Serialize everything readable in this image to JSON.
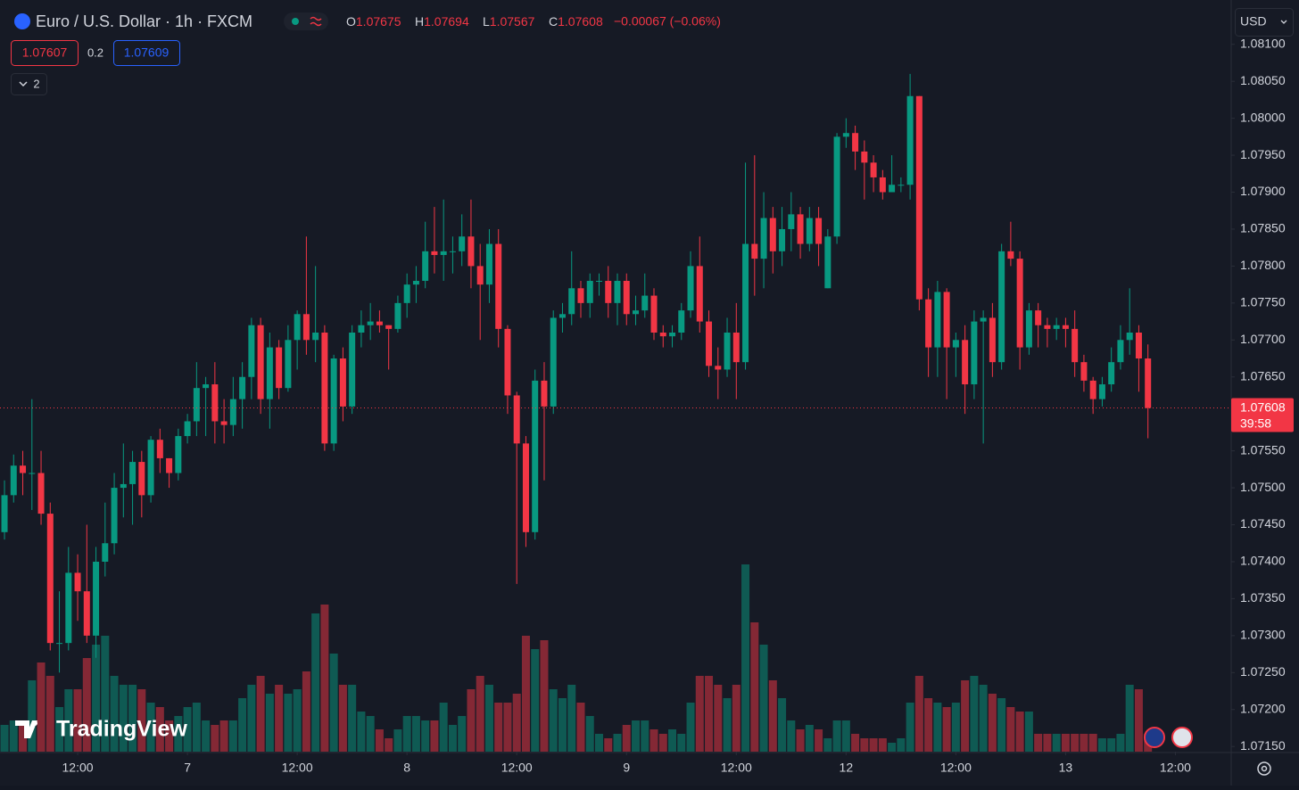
{
  "chart_data": {
    "type": "candlestick",
    "title": "Euro / U.S. Dollar · 1h · FXCM",
    "ohlc_header": [
      {
        "label": "O",
        "value": "1.07675"
      },
      {
        "label": "H",
        "value": "1.07694"
      },
      {
        "label": "L",
        "value": "1.07567"
      },
      {
        "label": "C",
        "value": "1.07608"
      }
    ],
    "change": "−0.00067 (−0.06%)",
    "up_color": "#089981",
    "down_color": "#f23645",
    "open": [
      1.0744,
      1.0749,
      1.0753,
      1.0752,
      1.0752,
      1.07465,
      1.0729,
      1.0729,
      1.07385,
      1.0736,
      1.073,
      1.074,
      1.07425,
      1.075,
      1.07505,
      1.07535,
      1.0749,
      1.07565,
      1.0754,
      1.0752,
      1.0757,
      1.0759,
      1.07635,
      1.0764,
      1.0759,
      1.07585,
      1.0762,
      1.0765,
      1.0772,
      1.0762,
      1.0769,
      1.07635,
      1.077,
      1.07735,
      1.077,
      1.0771,
      1.0756,
      1.07675,
      1.0761,
      1.0771,
      1.0772,
      1.07725,
      1.0772,
      1.07715,
      1.0775,
      1.07775,
      1.0778,
      1.0782,
      1.07815,
      1.0782,
      1.0782,
      1.0784,
      1.078,
      1.07775,
      1.0783,
      1.07715,
      1.07625,
      1.0756,
      1.0744,
      1.07645,
      1.0761,
      1.0773,
      1.07735,
      1.0777,
      1.0775,
      1.0778,
      1.0778,
      1.0775,
      1.0778,
      1.07735,
      1.0774,
      1.0776,
      1.0771,
      1.07705,
      1.0771,
      1.0774,
      1.078,
      1.07725,
      1.07665,
      1.0766,
      1.0771,
      1.0767,
      1.0783,
      1.0781,
      1.07865,
      1.0782,
      1.0785,
      1.0787,
      1.0783,
      1.07865,
      1.0777,
      1.0784,
      1.07975,
      1.0798,
      1.07955,
      1.0794,
      1.0792,
      1.079,
      1.0791,
      1.0791,
      1.0803,
      1.07755,
      1.0769,
      1.07765,
      1.0769,
      1.077,
      1.0764,
      1.07725,
      1.0773,
      1.0767,
      1.0782,
      1.0781,
      1.0769,
      1.0774,
      1.0772,
      1.07715,
      1.0772,
      1.07715,
      1.0767,
      1.07645,
      1.0762,
      1.0764,
      1.0767,
      1.077,
      1.0771,
      1.07675
    ],
    "high": [
      1.0751,
      1.07545,
      1.0755,
      1.0762,
      1.0755,
      1.0748,
      1.0736,
      1.0742,
      1.0741,
      1.0745,
      1.0742,
      1.0748,
      1.0752,
      1.0756,
      1.0755,
      1.0755,
      1.0757,
      1.0758,
      1.0754,
      1.0758,
      1.076,
      1.0767,
      1.0765,
      1.0767,
      1.0762,
      1.0765,
      1.0767,
      1.0773,
      1.0773,
      1.0771,
      1.077,
      1.0772,
      1.0774,
      1.0784,
      1.078,
      1.0772,
      1.0768,
      1.0769,
      1.0772,
      1.0774,
      1.0775,
      1.0774,
      1.0772,
      1.0776,
      1.0779,
      1.078,
      1.0786,
      1.0788,
      1.0789,
      1.0784,
      1.0787,
      1.0789,
      1.0783,
      1.0785,
      1.0785,
      1.0772,
      1.0763,
      1.0757,
      1.0766,
      1.0767,
      1.0774,
      1.0775,
      1.0782,
      1.0778,
      1.0779,
      1.0779,
      1.078,
      1.0779,
      1.0779,
      1.0776,
      1.0779,
      1.0777,
      1.0772,
      1.0772,
      1.0775,
      1.0782,
      1.0784,
      1.0774,
      1.0769,
      1.0773,
      1.0775,
      1.0794,
      1.0795,
      1.079,
      1.0788,
      1.0788,
      1.079,
      1.0788,
      1.0788,
      1.0788,
      1.0785,
      1.0798,
      1.08,
      1.0799,
      1.0797,
      1.0795,
      1.0793,
      1.0795,
      1.0792,
      1.0806,
      1.0803,
      1.0777,
      1.0778,
      1.0777,
      1.0771,
      1.0772,
      1.0774,
      1.0774,
      1.0775,
      1.0783,
      1.0786,
      1.0782,
      1.0775,
      1.0775,
      1.0773,
      1.0773,
      1.0773,
      1.0774,
      1.0768,
      1.0765,
      1.0765,
      1.0769,
      1.0772,
      1.0777,
      1.0772,
      1.07694
    ],
    "low": [
      1.0743,
      1.0748,
      1.0749,
      1.0747,
      1.0745,
      1.0728,
      1.0725,
      1.0728,
      1.0732,
      1.0729,
      1.0727,
      1.0738,
      1.0741,
      1.0746,
      1.0745,
      1.0746,
      1.0748,
      1.0752,
      1.075,
      1.0751,
      1.0756,
      1.0757,
      1.0757,
      1.0756,
      1.0756,
      1.0757,
      1.0758,
      1.0762,
      1.076,
      1.0758,
      1.0762,
      1.0763,
      1.0766,
      1.0768,
      1.0767,
      1.0755,
      1.0755,
      1.0759,
      1.076,
      1.0769,
      1.077,
      1.0771,
      1.0766,
      1.0771,
      1.0773,
      1.0775,
      1.0777,
      1.0779,
      1.0778,
      1.0779,
      1.078,
      1.0777,
      1.077,
      1.0775,
      1.0769,
      1.076,
      1.0737,
      1.0742,
      1.0743,
      1.0751,
      1.076,
      1.0771,
      1.0772,
      1.0773,
      1.0773,
      1.0776,
      1.0773,
      1.0772,
      1.0772,
      1.0772,
      1.0773,
      1.077,
      1.0769,
      1.0769,
      1.077,
      1.0773,
      1.0771,
      1.0765,
      1.0762,
      1.0765,
      1.0762,
      1.0766,
      1.0776,
      1.0777,
      1.0779,
      1.078,
      1.0782,
      1.0781,
      1.0782,
      1.078,
      1.0777,
      1.0783,
      1.0796,
      1.0793,
      1.0789,
      1.079,
      1.0789,
      1.079,
      1.079,
      1.0789,
      1.0774,
      1.0765,
      1.0765,
      1.0762,
      1.0765,
      1.076,
      1.0762,
      1.0756,
      1.0765,
      1.0766,
      1.078,
      1.0766,
      1.0768,
      1.0769,
      1.0769,
      1.077,
      1.0769,
      1.0765,
      1.0763,
      1.076,
      1.0761,
      1.0763,
      1.0766,
      1.0768,
      1.0763,
      1.07567
    ],
    "close": [
      1.0749,
      1.0753,
      1.0752,
      1.0752,
      1.07465,
      1.0729,
      1.0729,
      1.07385,
      1.0736,
      1.073,
      1.074,
      1.07425,
      1.075,
      1.07505,
      1.07535,
      1.0749,
      1.07565,
      1.0754,
      1.0752,
      1.0757,
      1.0759,
      1.07635,
      1.0764,
      1.0759,
      1.07585,
      1.0762,
      1.0765,
      1.0772,
      1.0762,
      1.0769,
      1.07635,
      1.077,
      1.07735,
      1.077,
      1.0771,
      1.0756,
      1.07675,
      1.0761,
      1.0771,
      1.0772,
      1.07725,
      1.0772,
      1.07715,
      1.0775,
      1.07775,
      1.0778,
      1.0782,
      1.07815,
      1.0782,
      1.0782,
      1.0784,
      1.078,
      1.07775,
      1.0783,
      1.07715,
      1.07625,
      1.0756,
      1.0744,
      1.07645,
      1.0761,
      1.0773,
      1.07735,
      1.0777,
      1.0775,
      1.0778,
      1.0778,
      1.0775,
      1.0778,
      1.07735,
      1.0774,
      1.0776,
      1.0771,
      1.07705,
      1.0771,
      1.0774,
      1.078,
      1.07725,
      1.07665,
      1.0766,
      1.0771,
      1.0767,
      1.0783,
      1.0781,
      1.07865,
      1.0782,
      1.0785,
      1.0787,
      1.0783,
      1.07865,
      1.0783,
      1.0784,
      1.07975,
      1.0798,
      1.07955,
      1.0794,
      1.0792,
      1.079,
      1.0791,
      1.0791,
      1.0803,
      1.07755,
      1.0769,
      1.07765,
      1.0769,
      1.077,
      1.0764,
      1.07725,
      1.0773,
      1.0767,
      1.0782,
      1.0781,
      1.0769,
      1.0774,
      1.0772,
      1.07715,
      1.0772,
      1.07715,
      1.0767,
      1.07645,
      1.0762,
      1.0764,
      1.0767,
      1.077,
      1.0771,
      1.07675,
      1.07608
    ],
    "volume": [
      30,
      35,
      35,
      80,
      100,
      85,
      50,
      70,
      70,
      105,
      120,
      130,
      85,
      75,
      75,
      70,
      55,
      50,
      35,
      40,
      50,
      55,
      35,
      30,
      35,
      35,
      60,
      75,
      85,
      65,
      75,
      65,
      70,
      90,
      155,
      165,
      110,
      75,
      75,
      45,
      40,
      25,
      15,
      25,
      40,
      40,
      35,
      35,
      55,
      30,
      40,
      70,
      85,
      75,
      55,
      55,
      65,
      130,
      115,
      125,
      70,
      60,
      75,
      55,
      40,
      20,
      15,
      20,
      30,
      35,
      35,
      25,
      20,
      25,
      20,
      55,
      85,
      85,
      75,
      60,
      75,
      210,
      145,
      120,
      80,
      60,
      35,
      25,
      30,
      25,
      15,
      35,
      35,
      20,
      15,
      15,
      15,
      10,
      15,
      55,
      85,
      60,
      55,
      50,
      55,
      80,
      85,
      75,
      65,
      60,
      50,
      45,
      45,
      20,
      20,
      20,
      20,
      20,
      20,
      20,
      15,
      15,
      20,
      75,
      70,
      20
    ],
    "xlim": [
      -0.49,
      134.1
    ],
    "xticks": [
      {
        "value": 8,
        "label": "12:00"
      },
      {
        "value": 20,
        "label": "7"
      },
      {
        "value": 32,
        "label": "12:00"
      },
      {
        "value": 44,
        "label": "8"
      },
      {
        "value": 56,
        "label": "12:00"
      },
      {
        "value": 68,
        "label": "9"
      },
      {
        "value": 80,
        "label": "12:00"
      },
      {
        "value": 92,
        "label": "12"
      },
      {
        "value": 104,
        "label": "12:00"
      },
      {
        "value": 116,
        "label": "13"
      },
      {
        "value": 128,
        "label": "12:00"
      }
    ],
    "ylim": [
      1.07143,
      1.0816
    ],
    "yticks": [
      {
        "value": 1.081,
        "label": "1.08100"
      },
      {
        "value": 1.0805,
        "label": "1.08050"
      },
      {
        "value": 1.08,
        "label": "1.08000"
      },
      {
        "value": 1.0795,
        "label": "1.07950"
      },
      {
        "value": 1.079,
        "label": "1.07900"
      },
      {
        "value": 1.0785,
        "label": "1.07850"
      },
      {
        "value": 1.078,
        "label": "1.07800"
      },
      {
        "value": 1.0775,
        "label": "1.07750"
      },
      {
        "value": 1.077,
        "label": "1.07700"
      },
      {
        "value": 1.0765,
        "label": "1.07650"
      },
      {
        "value": 1.0755,
        "label": "1.07550"
      },
      {
        "value": 1.075,
        "label": "1.07500"
      },
      {
        "value": 1.0745,
        "label": "1.07450"
      },
      {
        "value": 1.074,
        "label": "1.07400"
      },
      {
        "value": 1.0735,
        "label": "1.07350"
      },
      {
        "value": 1.073,
        "label": "1.07300"
      },
      {
        "value": 1.0725,
        "label": "1.07250"
      },
      {
        "value": 1.072,
        "label": "1.07200"
      },
      {
        "value": 1.0715,
        "label": "1.07150"
      }
    ],
    "last_price": {
      "value": 1.07608,
      "label": "1.07608"
    },
    "countdown": "39:58"
  },
  "ui": {
    "bid": "1.07607",
    "spread": "0.2",
    "ask": "1.07609",
    "indicators_count": "2",
    "currency": "USD",
    "watermark": "TradingView"
  }
}
